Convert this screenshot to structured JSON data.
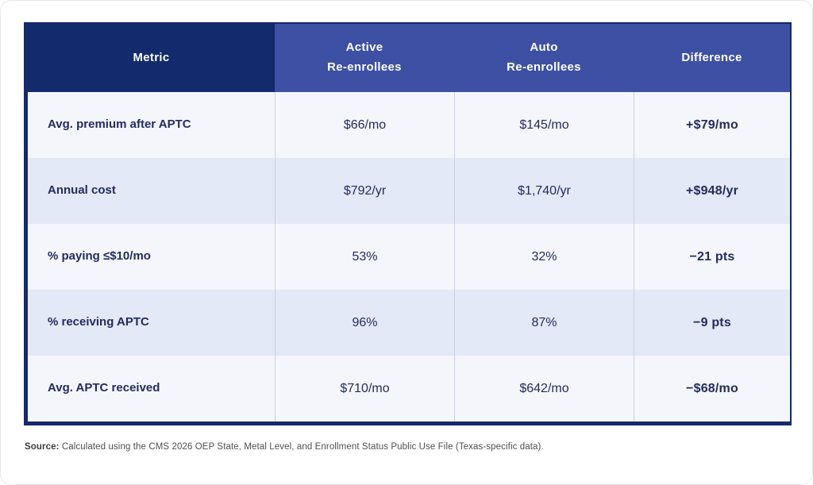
{
  "table": {
    "header": {
      "metric": "Metric",
      "active_line1": "Active",
      "active_line2": "Re-enrollees",
      "auto_line1": "Auto",
      "auto_line2": "Re-enrollees",
      "difference": "Difference"
    },
    "rows": [
      {
        "metric": "Avg. premium after APTC",
        "active": "$66/mo",
        "auto": "$145/mo",
        "difference": "+$79/mo",
        "trend": "increase"
      },
      {
        "metric": "Annual cost",
        "active": "$792/yr",
        "auto": "$1,740/yr",
        "difference": "+$948/yr",
        "trend": "increase"
      },
      {
        "metric": "% paying ≤$10/mo",
        "active": "53%",
        "auto": "32%",
        "difference": "−21 pts",
        "trend": "decrease"
      },
      {
        "metric": "% receiving APTC",
        "active": "96%",
        "auto": "87%",
        "difference": "−9 pts",
        "trend": "decrease"
      },
      {
        "metric": "Avg. APTC received",
        "active": "$710/mo",
        "auto": "$642/mo",
        "difference": "−$68/mo",
        "trend": "decrease"
      }
    ]
  },
  "source": {
    "label": "Source:",
    "text": " Calculated using the CMS 2026 OEP State, Metal Level, and Enrollment Status Public Use File (Texas-specific data)."
  },
  "colors": {
    "header_metric_bg": "#132a6c",
    "header_bg": "#3d50a3",
    "border_navy": "#15296b",
    "row_light": "#f4f6fb",
    "row_alt": "#e3e9f6",
    "text_navy": "#222c5e",
    "increase": "#f04f3b",
    "decrease": "#12a4bc"
  }
}
